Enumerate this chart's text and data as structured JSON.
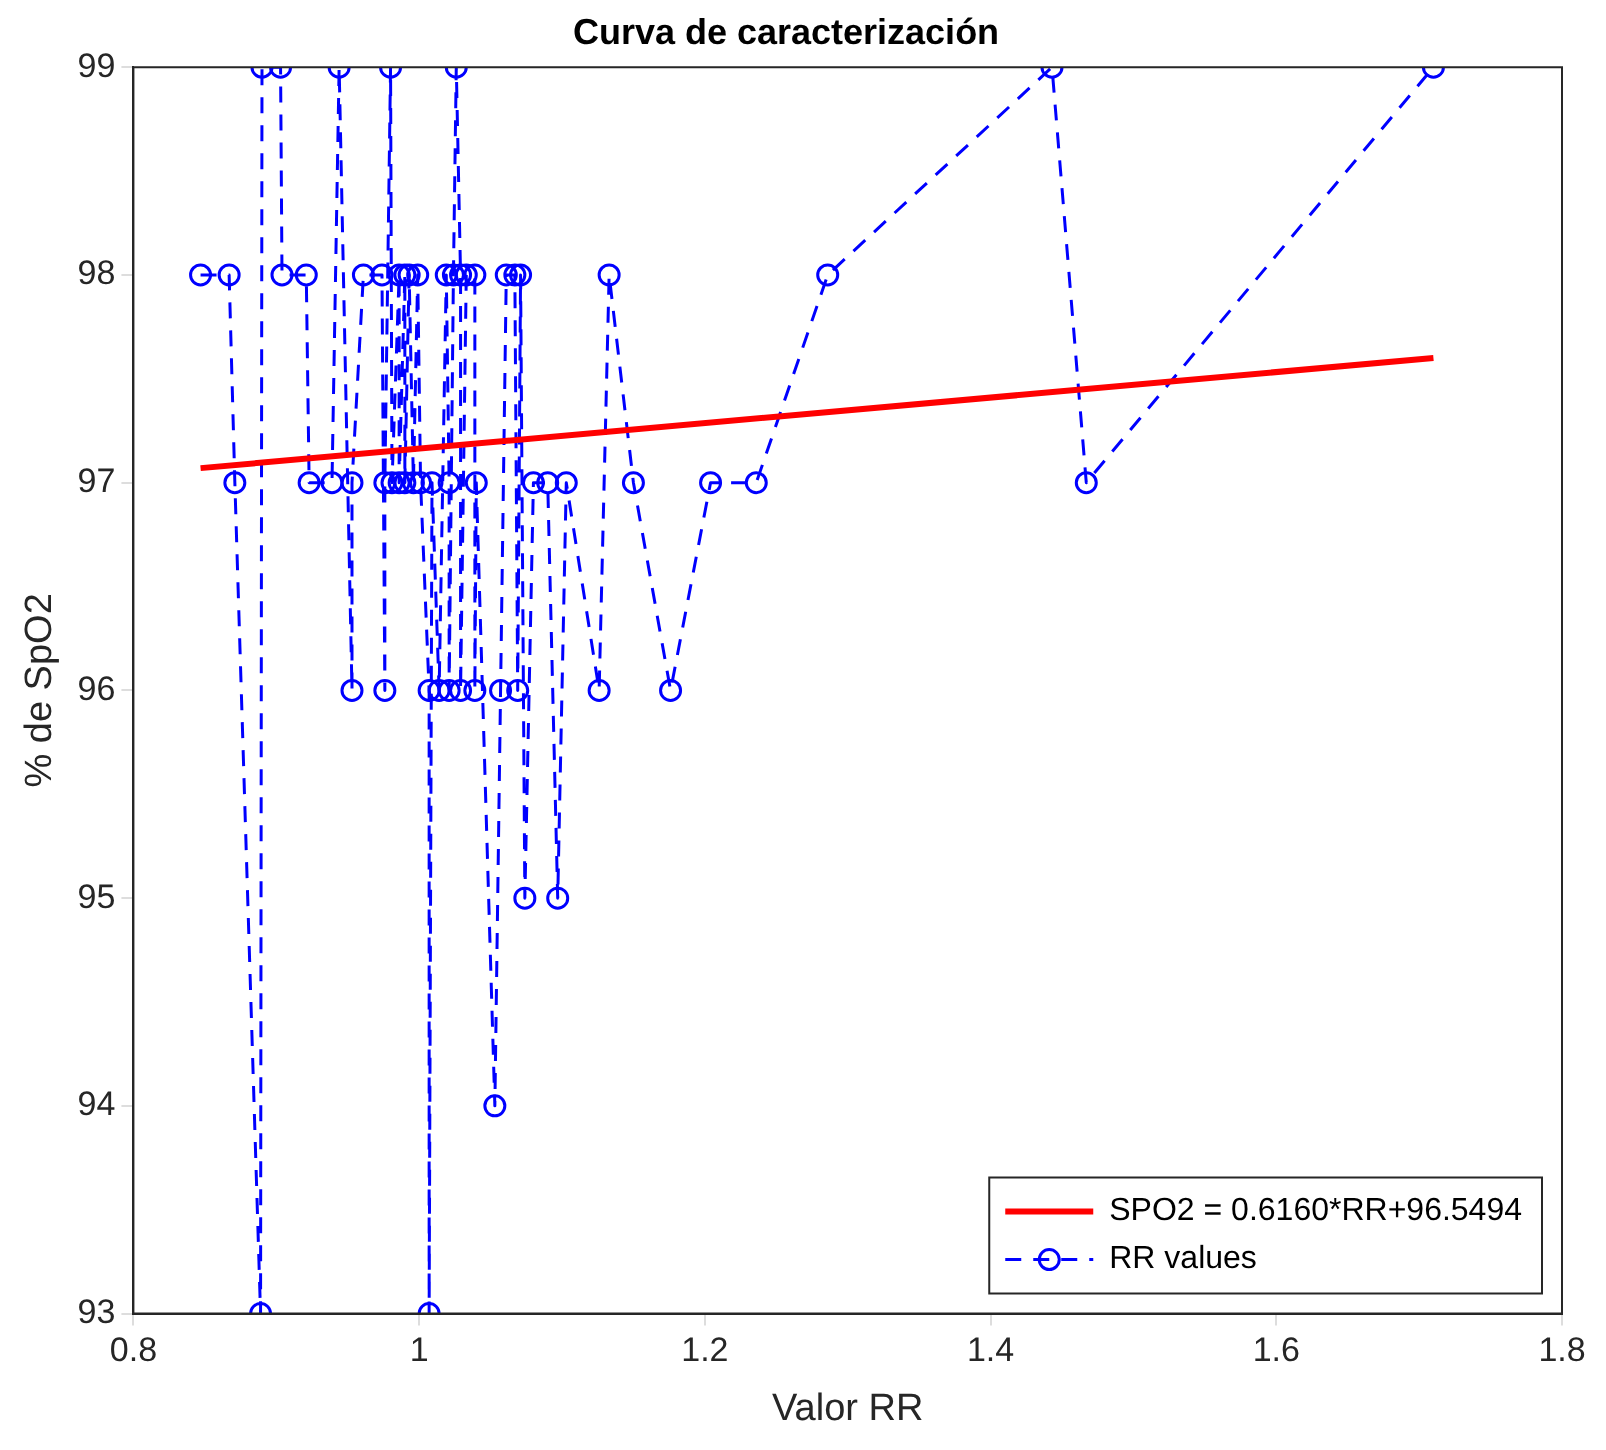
{
  "chart_data": {
    "type": "line",
    "title": "Curva de caracterización",
    "xlabel": "Valor RR",
    "ylabel": "% de SpO2",
    "xlim": [
      0.8,
      1.8
    ],
    "xticks": [
      0.8,
      1,
      1.2,
      1.4,
      1.6,
      1.8
    ],
    "ylim": [
      93,
      99
    ],
    "yticks": [
      93,
      94,
      95,
      96,
      97,
      98,
      99
    ],
    "grid": false,
    "legend": "bottom right",
    "series": [
      {
        "name": "SPO2 = 0.6160*RR+96.5494",
        "color": "#ff0000",
        "marker": "none",
        "line_style": "solid",
        "x": [
          0.847,
          1.71
        ],
        "values": [
          97.07,
          97.6
        ]
      },
      {
        "name": "RR values",
        "color": "#0000ff",
        "marker": "circle",
        "line_style": "dashed",
        "x": [
          0.847,
          0.867,
          0.871,
          0.889,
          0.89,
          0.903,
          0.904,
          0.921,
          0.923,
          0.939,
          0.944,
          0.953,
          0.953,
          0.961,
          0.974,
          0.976,
          0.976,
          0.98,
          0.981,
          0.986,
          0.986,
          0.99,
          0.99,
          0.993,
          0.996,
          0.999,
          1.001,
          1.007,
          1.007,
          1.009,
          1.014,
          1.019,
          1.021,
          1.021,
          1.024,
          1.026,
          1.029,
          1.029,
          1.033,
          1.039,
          1.039,
          1.04,
          1.053,
          1.057,
          1.061,
          1.067,
          1.069,
          1.071,
          1.074,
          1.08,
          1.09,
          1.097,
          1.103,
          1.126,
          1.133,
          1.15,
          1.176,
          1.204,
          1.236,
          1.286,
          1.443,
          1.467,
          1.71
        ],
        "values": [
          98,
          98,
          97,
          93,
          99,
          99,
          98,
          98,
          97,
          97,
          99,
          96,
          97,
          98,
          98,
          96,
          97,
          99,
          97,
          98,
          97,
          98,
          97,
          98,
          97,
          98,
          97,
          96,
          93,
          97,
          96,
          98,
          97,
          96,
          98,
          99,
          98,
          96,
          98,
          98,
          96,
          97,
          94,
          96,
          98,
          98,
          96,
          98,
          95,
          97,
          97,
          95,
          97,
          96,
          98,
          97,
          96,
          97,
          97,
          98,
          99,
          97,
          99
        ]
      }
    ]
  }
}
